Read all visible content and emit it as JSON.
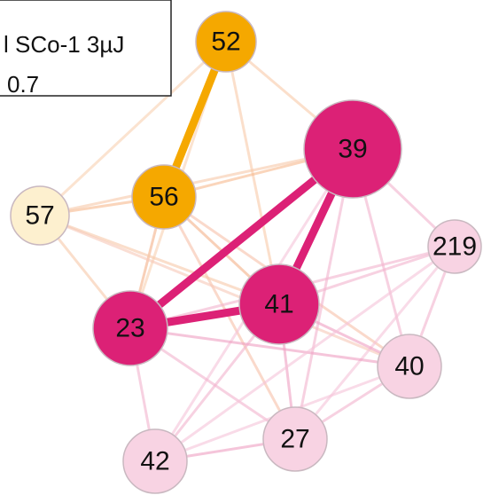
{
  "legend": {
    "lines": [
      "l SCo-1 3µJ",
      "0.7"
    ]
  },
  "nodes": [
    {
      "label": "52"
    },
    {
      "label": "56"
    },
    {
      "label": "57"
    },
    {
      "label": "39"
    },
    {
      "label": "219"
    },
    {
      "label": "41"
    },
    {
      "label": "23"
    },
    {
      "label": "40"
    },
    {
      "label": "27"
    },
    {
      "label": "42"
    }
  ]
}
